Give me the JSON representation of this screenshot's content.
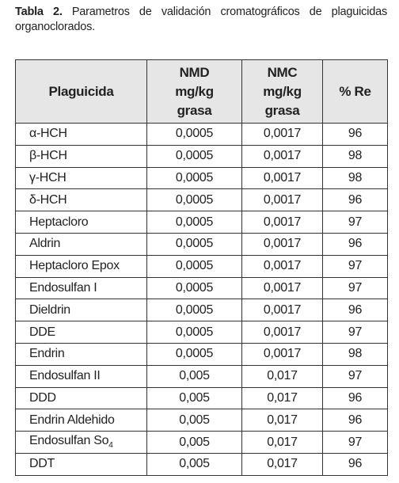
{
  "caption": {
    "label": "Tabla 2.",
    "text": "Parametros de validación cromatográficos de plaguicidas organoclorados."
  },
  "table": {
    "header": [
      [
        "Plaguicida"
      ],
      [
        "NMD",
        "mg/kg",
        "grasa"
      ],
      [
        "NMC",
        "mg/kg",
        "grasa"
      ],
      [
        "% Re"
      ]
    ],
    "rows": [
      [
        "α-HCH",
        "0,0005",
        "0,0017",
        "96"
      ],
      [
        "β-HCH",
        "0,0005",
        "0,0017",
        "98"
      ],
      [
        "γ-HCH",
        "0,0005",
        "0,0017",
        "98"
      ],
      [
        "δ-HCH",
        "0,0005",
        "0,0017",
        "96"
      ],
      [
        "Heptacloro",
        "0,0005",
        "0,0017",
        "97"
      ],
      [
        "Aldrin",
        "0,0005",
        "0,0017",
        "96"
      ],
      [
        "Heptacloro Epox",
        "0,0005",
        "0,0017",
        "97"
      ],
      [
        "Endosulfan I",
        "0,0005",
        "0,0017",
        "97"
      ],
      [
        "Dieldrin",
        "0,0005",
        "0,0017",
        "96"
      ],
      [
        "DDE",
        "0,0005",
        "0,0017",
        "97"
      ],
      [
        "Endrin",
        "0,0005",
        "0,0017",
        "98"
      ],
      [
        "Endosulfan II",
        "0,005",
        "0,017",
        "97"
      ],
      [
        "DDD",
        "0,005",
        "0,017",
        "96"
      ],
      [
        "Endrin Aldehido",
        "0,005",
        "0,017",
        "96"
      ],
      [
        {
          "text": "Endosulfan So",
          "subscript": "4"
        },
        "0,005",
        "0,017",
        "97"
      ],
      [
        "DDT",
        "0,005",
        "0,017",
        "96"
      ]
    ]
  }
}
